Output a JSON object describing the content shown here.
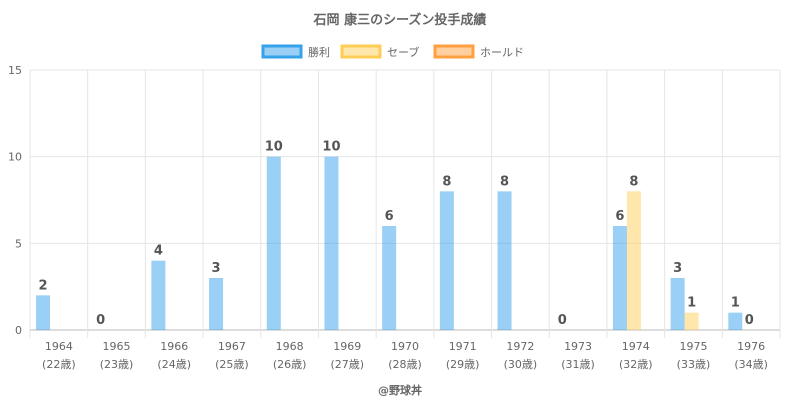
{
  "chart_data": {
    "type": "bar",
    "title": "石岡 康三のシーズン投手成績",
    "categories": [
      "1964",
      "1965",
      "1966",
      "1967",
      "1968",
      "1969",
      "1970",
      "1971",
      "1972",
      "1973",
      "1974",
      "1975",
      "1976"
    ],
    "category_sublabels": [
      "(22歳)",
      "(23歳)",
      "(24歳)",
      "(25歳)",
      "(26歳)",
      "(27歳)",
      "(28歳)",
      "(29歳)",
      "(30歳)",
      "(31歳)",
      "(32歳)",
      "(33歳)",
      "(34歳)"
    ],
    "series": [
      {
        "name": "勝利",
        "values": [
          2,
          0,
          4,
          3,
          10,
          10,
          6,
          8,
          8,
          0,
          6,
          3,
          1
        ],
        "color": "#36a2eb"
      },
      {
        "name": "セーブ",
        "values": [
          null,
          null,
          null,
          null,
          null,
          null,
          null,
          null,
          null,
          null,
          8,
          1,
          0
        ],
        "color": "#ffcd56"
      },
      {
        "name": "ホールド",
        "values": [
          null,
          null,
          null,
          null,
          null,
          null,
          null,
          null,
          null,
          null,
          null,
          null,
          null
        ],
        "color": "#ff9f40"
      }
    ],
    "yticks": [
      0,
      5,
      10,
      15
    ],
    "ylim": [
      0,
      15
    ],
    "grid": true,
    "legend": "top-center"
  },
  "credit": "@野球丼"
}
